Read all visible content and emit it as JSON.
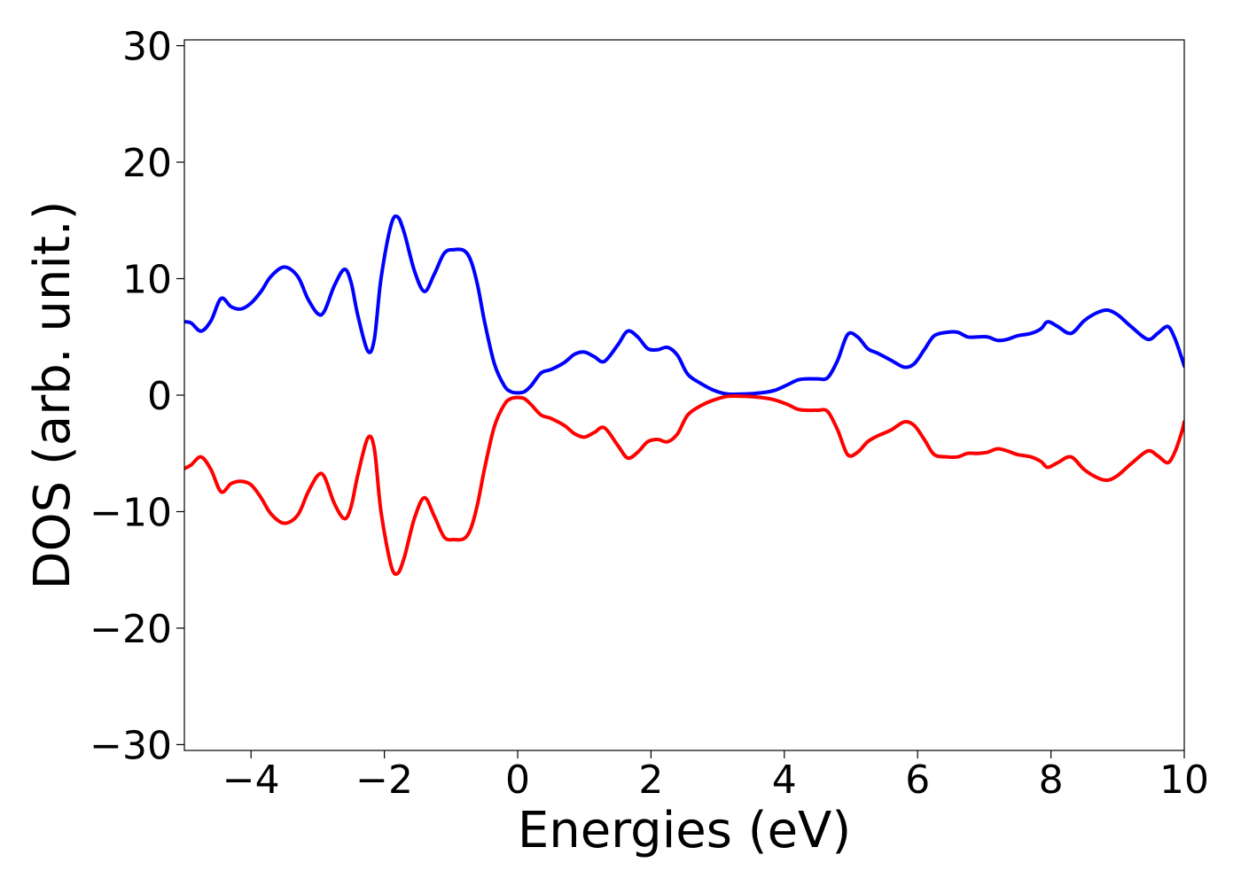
{
  "chart_data": {
    "type": "line",
    "title": "",
    "xlabel": "Energies (eV)",
    "ylabel": "DOS (arb. unit.)",
    "xlim": [
      -5,
      10
    ],
    "ylim": [
      -30.5,
      30.5
    ],
    "x_ticks": [
      -4,
      -2,
      0,
      2,
      4,
      6,
      8,
      10
    ],
    "x_tick_labels": [
      "−4",
      "−2",
      "0",
      "2",
      "4",
      "6",
      "8",
      "10"
    ],
    "y_ticks": [
      30,
      20,
      10,
      0,
      -10,
      -20,
      -30
    ],
    "y_tick_labels": [
      "30",
      "20",
      "10",
      "0",
      "−10",
      "−20",
      "−30"
    ],
    "grid": false,
    "legend": "none",
    "series": [
      {
        "color": "#0000ff",
        "x": [
          -5.0,
          -4.9,
          -4.75,
          -4.6,
          -4.45,
          -4.3,
          -4.15,
          -4.0,
          -3.85,
          -3.7,
          -3.5,
          -3.3,
          -3.15,
          -3.0,
          -2.9,
          -2.75,
          -2.6,
          -2.5,
          -2.4,
          -2.25,
          -2.15,
          -2.05,
          -1.9,
          -1.8,
          -1.7,
          -1.55,
          -1.4,
          -1.25,
          -1.1,
          -0.95,
          -0.8,
          -0.7,
          -0.6,
          -0.5,
          -0.35,
          -0.2,
          -0.1,
          0.0,
          0.1,
          0.2,
          0.35,
          0.5,
          0.7,
          0.85,
          1.0,
          1.15,
          1.3,
          1.5,
          1.65,
          1.8,
          1.95,
          2.1,
          2.25,
          2.4,
          2.55,
          2.75,
          2.95,
          3.15,
          3.4,
          3.65,
          3.85,
          4.05,
          4.2,
          4.35,
          4.5,
          4.65,
          4.8,
          4.95,
          5.1,
          5.25,
          5.4,
          5.6,
          5.8,
          5.95,
          6.1,
          6.25,
          6.45,
          6.6,
          6.75,
          6.9,
          7.05,
          7.2,
          7.35,
          7.5,
          7.7,
          7.85,
          7.95,
          8.1,
          8.3,
          8.5,
          8.7,
          8.85,
          9.0,
          9.2,
          9.45,
          9.6,
          9.75,
          9.85,
          9.95,
          10.0
        ],
        "y": [
          6.3,
          6.2,
          5.5,
          6.4,
          8.3,
          7.6,
          7.4,
          7.9,
          8.9,
          10.2,
          11.0,
          10.2,
          8.3,
          7.0,
          7.2,
          9.4,
          10.8,
          9.7,
          6.9,
          3.8,
          4.8,
          10.0,
          14.6,
          15.3,
          13.9,
          10.7,
          8.9,
          10.4,
          12.2,
          12.5,
          12.4,
          11.5,
          9.4,
          6.4,
          2.7,
          0.8,
          0.3,
          0.2,
          0.3,
          0.8,
          1.9,
          2.2,
          2.8,
          3.5,
          3.7,
          3.3,
          2.9,
          4.3,
          5.5,
          5.0,
          4.0,
          3.9,
          4.1,
          3.4,
          1.8,
          1.0,
          0.4,
          0.1,
          0.1,
          0.2,
          0.4,
          0.9,
          1.3,
          1.4,
          1.4,
          1.5,
          3.0,
          5.2,
          5.0,
          4.0,
          3.6,
          3.0,
          2.4,
          2.7,
          3.9,
          5.1,
          5.4,
          5.4,
          5.0,
          5.0,
          5.0,
          4.7,
          4.8,
          5.1,
          5.3,
          5.7,
          6.3,
          5.9,
          5.3,
          6.4,
          7.1,
          7.3,
          6.9,
          5.9,
          4.8,
          5.3,
          5.9,
          5.0,
          3.4,
          2.5
        ]
      },
      {
        "color": "#ff0000",
        "x": [
          -5.0,
          -4.9,
          -4.75,
          -4.6,
          -4.45,
          -4.3,
          -4.15,
          -4.0,
          -3.85,
          -3.7,
          -3.5,
          -3.3,
          -3.15,
          -3.0,
          -2.9,
          -2.75,
          -2.6,
          -2.5,
          -2.4,
          -2.25,
          -2.15,
          -2.05,
          -1.9,
          -1.8,
          -1.7,
          -1.55,
          -1.4,
          -1.25,
          -1.1,
          -0.95,
          -0.8,
          -0.7,
          -0.6,
          -0.5,
          -0.35,
          -0.2,
          -0.1,
          0.0,
          0.1,
          0.2,
          0.35,
          0.5,
          0.7,
          0.85,
          1.0,
          1.15,
          1.3,
          1.5,
          1.65,
          1.8,
          1.95,
          2.1,
          2.25,
          2.4,
          2.55,
          2.75,
          2.95,
          3.15,
          3.4,
          3.65,
          3.85,
          4.05,
          4.2,
          4.35,
          4.5,
          4.65,
          4.8,
          4.95,
          5.1,
          5.25,
          5.4,
          5.6,
          5.8,
          5.95,
          6.1,
          6.25,
          6.45,
          6.6,
          6.75,
          6.9,
          7.05,
          7.2,
          7.35,
          7.5,
          7.7,
          7.85,
          7.95,
          8.1,
          8.3,
          8.5,
          8.7,
          8.85,
          9.0,
          9.2,
          9.45,
          9.6,
          9.75,
          9.85,
          9.95,
          10.0
        ],
        "y": [
          -6.3,
          -6.0,
          -5.3,
          -6.4,
          -8.3,
          -7.6,
          -7.4,
          -7.7,
          -8.8,
          -10.2,
          -11.0,
          -10.3,
          -8.4,
          -6.9,
          -7.0,
          -9.3,
          -10.6,
          -9.6,
          -6.9,
          -3.7,
          -4.6,
          -10.0,
          -14.6,
          -15.3,
          -13.9,
          -10.6,
          -8.8,
          -10.4,
          -12.2,
          -12.4,
          -12.3,
          -11.4,
          -9.3,
          -6.4,
          -2.7,
          -0.8,
          -0.3,
          -0.2,
          -0.3,
          -0.8,
          -1.7,
          -2.0,
          -2.6,
          -3.3,
          -3.6,
          -3.2,
          -2.8,
          -4.3,
          -5.4,
          -4.9,
          -4.0,
          -3.8,
          -4.0,
          -3.3,
          -1.7,
          -0.9,
          -0.4,
          -0.1,
          -0.1,
          -0.2,
          -0.4,
          -0.8,
          -1.2,
          -1.3,
          -1.3,
          -1.4,
          -3.0,
          -5.1,
          -4.9,
          -4.0,
          -3.5,
          -3.0,
          -2.3,
          -2.6,
          -3.8,
          -5.1,
          -5.3,
          -5.3,
          -5.0,
          -5.0,
          -4.9,
          -4.6,
          -4.8,
          -5.1,
          -5.3,
          -5.7,
          -6.2,
          -5.8,
          -5.3,
          -6.4,
          -7.1,
          -7.3,
          -6.9,
          -5.9,
          -4.8,
          -5.2,
          -5.8,
          -5.0,
          -3.4,
          -2.3
        ]
      }
    ]
  }
}
